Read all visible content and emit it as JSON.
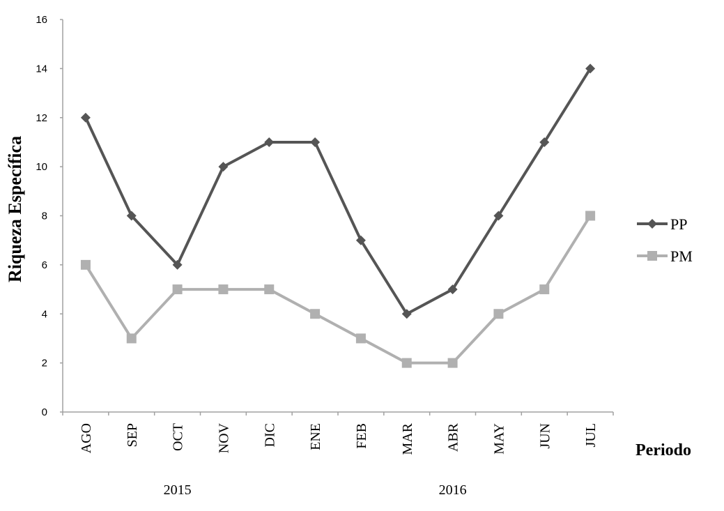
{
  "chart_data": {
    "type": "line",
    "categories": [
      "AGO",
      "SEP",
      "OCT",
      "NOV",
      "DIC",
      "ENE",
      "FEB",
      "MAR",
      "ABR",
      "MAY",
      "JUN",
      "JUL"
    ],
    "year_groups": [
      {
        "label": "2015",
        "from": "AGO",
        "to": "DIC"
      },
      {
        "label": "2016",
        "from": "ENE",
        "to": "JUL"
      }
    ],
    "series": [
      {
        "name": "PP",
        "values": [
          12,
          8,
          6,
          10,
          11,
          11,
          7,
          4,
          5,
          8,
          11,
          14
        ],
        "color": "#555555",
        "marker": "diamond"
      },
      {
        "name": "PM",
        "values": [
          6,
          3,
          5,
          5,
          5,
          4,
          3,
          2,
          2,
          4,
          5,
          8
        ],
        "color": "#b0b0b0",
        "marker": "square"
      }
    ],
    "xlabel": "Periodo",
    "ylabel": "Riqueza Específica",
    "ylim": [
      0,
      16
    ],
    "yticks": [
      0,
      2,
      4,
      6,
      8,
      10,
      12,
      14,
      16
    ],
    "grid": false,
    "legend": "right"
  }
}
